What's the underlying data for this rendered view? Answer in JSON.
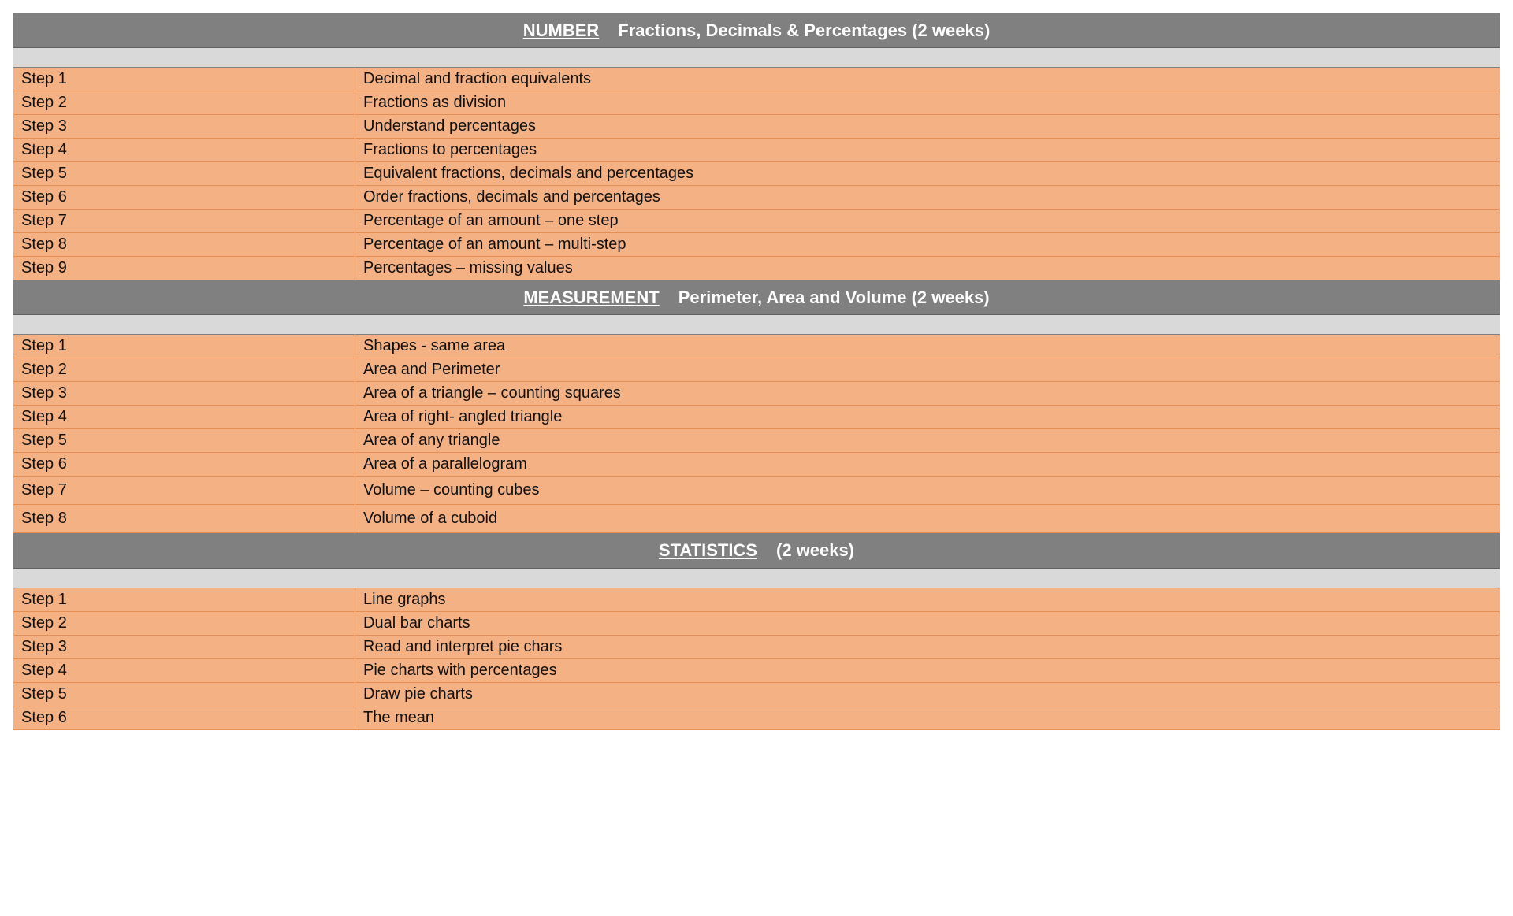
{
  "sections": [
    {
      "category": "NUMBER",
      "title": "Fractions, Decimals & Percentages (2 weeks)",
      "steps": [
        {
          "label": "Step 1",
          "desc": "Decimal and fraction equivalents"
        },
        {
          "label": "Step 2",
          "desc": "Fractions as division"
        },
        {
          "label": "Step 3",
          "desc": "Understand percentages"
        },
        {
          "label": "Step 4",
          "desc": "Fractions to percentages"
        },
        {
          "label": "Step 5",
          "desc": "Equivalent fractions, decimals and percentages"
        },
        {
          "label": "Step 6",
          "desc": "Order fractions, decimals and percentages"
        },
        {
          "label": "Step 7",
          "desc": "Percentage of an amount – one step"
        },
        {
          "label": "Step 8",
          "desc": "Percentage of an amount – multi-step"
        },
        {
          "label": "Step 9",
          "desc": "Percentages – missing values"
        }
      ]
    },
    {
      "category": "MEASUREMENT",
      "title": "Perimeter, Area and Volume (2 weeks)",
      "steps": [
        {
          "label": "Step 1",
          "desc": "Shapes - same area"
        },
        {
          "label": "Step 2",
          "desc": "Area and Perimeter"
        },
        {
          "label": "Step 3",
          "desc": "Area of a triangle – counting squares"
        },
        {
          "label": "Step 4",
          "desc": "Area of right- angled triangle"
        },
        {
          "label": "Step 5",
          "desc": "Area of any triangle"
        },
        {
          "label": "Step 6",
          "desc": "Area of a parallelogram"
        },
        {
          "label": "Step 7",
          "desc": "Volume – counting cubes",
          "extra_pad": true
        },
        {
          "label": "Step 8",
          "desc": "Volume of a cuboid",
          "extra_pad": true
        }
      ]
    },
    {
      "category": "STATISTICS",
      "title": "(2 weeks)",
      "steps": [
        {
          "label": "Step 1",
          "desc": "Line graphs"
        },
        {
          "label": "Step 2",
          "desc": "Dual bar charts"
        },
        {
          "label": "Step 3",
          "desc": "Read and interpret pie chars"
        },
        {
          "label": "Step 4",
          "desc": "Pie charts with percentages"
        },
        {
          "label": "Step 5",
          "desc": "Draw pie charts"
        },
        {
          "label": "Step 6",
          "desc": "The mean"
        }
      ]
    }
  ]
}
